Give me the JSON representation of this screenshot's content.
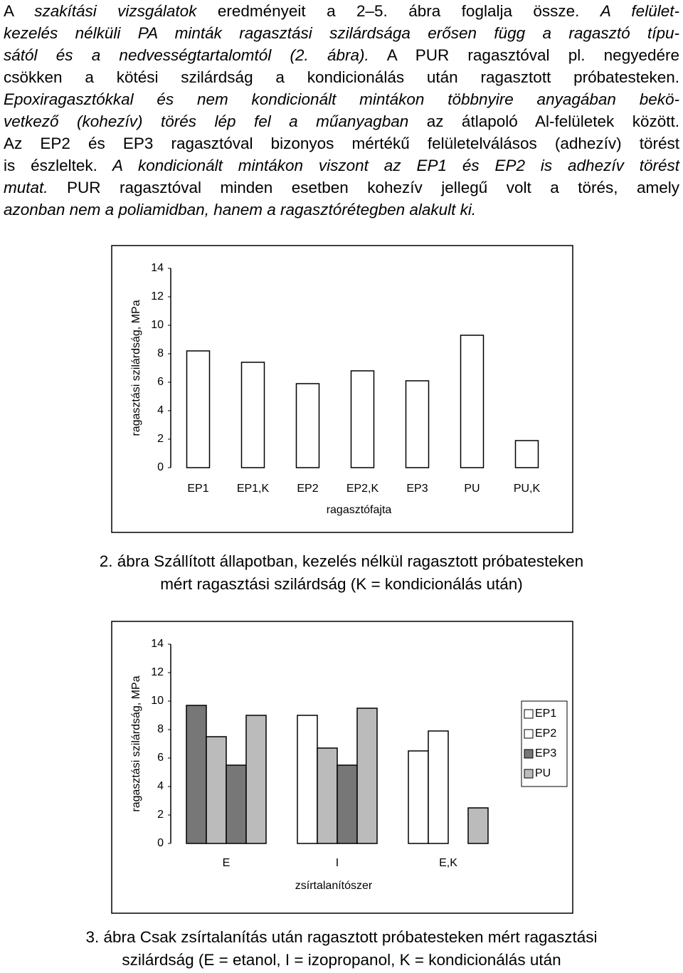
{
  "paragraph": [
    [
      {
        "text": "A ",
        "italic": false
      },
      {
        "text": "szakítási vizsgálatok",
        "italic": true
      },
      {
        "text": " eredményeit a 2–5. ábra foglalja össze. ",
        "italic": false
      },
      {
        "text": "A felület-",
        "italic": true
      }
    ],
    [
      {
        "text": "kezelés nélküli PA minták ragasztási szilárdsága erősen függ a ragasztó típu-",
        "italic": true
      }
    ],
    [
      {
        "text": "sától és a nedvességtartalomtól (2. ábra).",
        "italic": true
      },
      {
        "text": " A PUR ragasztóval pl. negyedére",
        "italic": false
      }
    ],
    [
      {
        "text": "csökken a kötési szilárdság a kondicionálás után ragasztott próbatesteken.",
        "italic": false
      }
    ],
    [
      {
        "text": "Epoxiragasztókkal és nem kondicionált mintákon többnyire anyagában bekö-",
        "italic": true
      }
    ],
    [
      {
        "text": "vetkező (kohezív) törés lép fel a műanyagban",
        "italic": true
      },
      {
        "text": " az átlapoló Al-felületek között.",
        "italic": false
      }
    ],
    [
      {
        "text": "Az EP2 és EP3 ragasztóval bizonyos mértékű felületelválásos (adhezív) törést",
        "italic": false
      }
    ],
    [
      {
        "text": "is észleltek.",
        "italic": false
      },
      {
        "text": " A kondicionált mintákon viszont az EP1 és EP2 is adhezív törést",
        "italic": true
      }
    ],
    [
      {
        "text": "mutat.",
        "italic": true
      },
      {
        "text": " PUR ragasztóval minden esetben kohezív jellegű volt a törés, amely",
        "italic": false
      }
    ],
    [
      {
        "text": "azonban nem a poliamidban, hanem a ragasztórétegben alakult ki.",
        "italic": true
      }
    ]
  ],
  "chart_data": [
    {
      "type": "bar",
      "xlabel": "ragasztófajta",
      "ylabel": "ragasztási szilárdság, MPa",
      "categories": [
        "EP1",
        "EP1,K",
        "EP2",
        "EP2,K",
        "EP3",
        "PU",
        "PU,K"
      ],
      "values": [
        8.2,
        7.4,
        5.9,
        6.8,
        6.1,
        9.3,
        1.9
      ],
      "color": "#ffffff",
      "ylim": [
        0,
        14
      ],
      "yticks": [
        0,
        2,
        4,
        6,
        8,
        10,
        12,
        14
      ],
      "caption": [
        "2. ábra Szállított állapotban, kezelés nélkül ragasztott próbatesteken",
        "mért ragasztási szilárdság (K = kondicionálás után)"
      ]
    },
    {
      "type": "bar",
      "xlabel": "zsírtalanítószer",
      "ylabel": "ragasztási szilárdság, MPa",
      "categories": [
        "E",
        "I",
        "E,K"
      ],
      "series": [
        {
          "name": "EP1",
          "color": "#ffffff",
          "colors": [
            "#777777",
            "#ffffff",
            "#ffffff"
          ],
          "values": [
            9.7,
            9.0,
            6.5
          ]
        },
        {
          "name": "EP2",
          "color": "#ffffff",
          "colors": [
            "#bbbbbb",
            "#bbbbbb",
            "#ffffff"
          ],
          "values": [
            7.5,
            6.7,
            7.9
          ]
        },
        {
          "name": "EP3",
          "color": "#777777",
          "colors": [
            "#777777",
            "#777777",
            "#777777"
          ],
          "values": [
            5.5,
            5.5,
            null
          ]
        },
        {
          "name": "PU",
          "color": "#bbbbbb",
          "colors": [
            "#bbbbbb",
            "#bbbbbb",
            "#bbbbbb"
          ],
          "values": [
            9.0,
            9.5,
            2.5
          ]
        }
      ],
      "ylim": [
        0,
        14
      ],
      "yticks": [
        0,
        2,
        4,
        6,
        8,
        10,
        12,
        14
      ],
      "legend": "right",
      "caption": [
        "3. ábra Csak zsírtalanítás után ragasztott próbatesteken mért ragasztási",
        "szilárdság (E = etanol, I = izopropanol, K = kondicionálás után"
      ]
    }
  ]
}
